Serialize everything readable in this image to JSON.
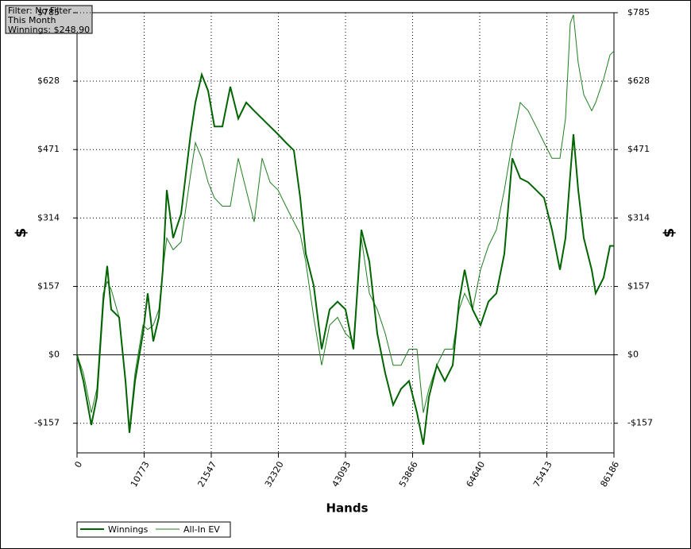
{
  "chart_data": {
    "type": "line",
    "info": [
      "Filter: No Filter",
      "This Month",
      "Winnings: $248.90"
    ],
    "xlabel": "Hands",
    "ylabel": "$",
    "xlim": [
      0,
      86186
    ],
    "xticks": [
      0,
      10773,
      21547,
      32320,
      43093,
      53866,
      64640,
      75413,
      86186
    ],
    "ylim": [
      -225,
      785
    ],
    "yticks": [
      {
        "value": -157,
        "label": "-$157"
      },
      {
        "value": 0,
        "label": "$0"
      },
      {
        "value": 157,
        "label": "$157"
      },
      {
        "value": 314,
        "label": "$314"
      },
      {
        "value": 471,
        "label": "$471"
      },
      {
        "value": 628,
        "label": "$628"
      },
      {
        "value": 785,
        "label": "$785"
      }
    ],
    "grid": true,
    "x": [
      0,
      1020,
      2295,
      3188,
      4208,
      4845,
      5483,
      6758,
      7778,
      8415,
      9308,
      10583,
      11348,
      12240,
      13133,
      13770,
      14408,
      15428,
      16703,
      18233,
      18998,
      20018,
      21038,
      22058,
      23333,
      24608,
      25883,
      27158,
      28433,
      29708,
      30983,
      32258,
      33533,
      34808,
      35828,
      36720,
      37995,
      39270,
      40545,
      41820,
      43095,
      44370,
      45645,
      46920,
      48195,
      49470,
      50745,
      52020,
      53295,
      54570,
      55590,
      56483,
      57758,
      59033,
      60308,
      61328,
      62220,
      63495,
      64770,
      66045,
      67320,
      68595,
      69870,
      71145,
      72420,
      73695,
      74970,
      76245,
      77520,
      78413,
      79178,
      79688,
      80453,
      81345,
      82620,
      83258,
      84533,
      85553,
      86186
    ],
    "series": [
      {
        "name": "Winnings",
        "color": "#006400",
        "values": [
          0,
          -60,
          -161,
          -97,
          122,
          204,
          104,
          86,
          -60,
          -179,
          -60,
          49,
          141,
          31,
          86,
          195,
          378,
          268,
          323,
          506,
          579,
          643,
          606,
          524,
          524,
          615,
          542,
          579,
          560,
          542,
          524,
          506,
          487,
          469,
          360,
          232,
          159,
          13,
          104,
          122,
          104,
          13,
          287,
          214,
          49,
          -42,
          -115,
          -78,
          -60,
          -133,
          -206,
          -97,
          -24,
          -60,
          -24,
          122,
          195,
          104,
          68,
          122,
          141,
          232,
          451,
          405,
          396,
          378,
          360,
          287,
          195,
          268,
          414,
          506,
          378,
          268,
          195,
          141,
          177,
          250,
          250
        ]
      },
      {
        "name": "All-In EV",
        "color": "#1f7f1f",
        "values": [
          0,
          -42,
          -133,
          -78,
          141,
          168,
          150,
          86,
          -60,
          -170,
          -42,
          68,
          58,
          68,
          104,
          195,
          268,
          241,
          259,
          414,
          487,
          451,
          396,
          360,
          341,
          341,
          451,
          378,
          305,
          451,
          396,
          378,
          341,
          305,
          277,
          213,
          86,
          -24,
          68,
          86,
          49,
          31,
          268,
          141,
          104,
          49,
          -24,
          -24,
          13,
          13,
          -133,
          -78,
          -24,
          13,
          13,
          104,
          141,
          104,
          195,
          250,
          287,
          378,
          487,
          579,
          560,
          524,
          487,
          451,
          451,
          542,
          761,
          780,
          670,
          597,
          560,
          579,
          633,
          688,
          697
        ]
      }
    ]
  }
}
